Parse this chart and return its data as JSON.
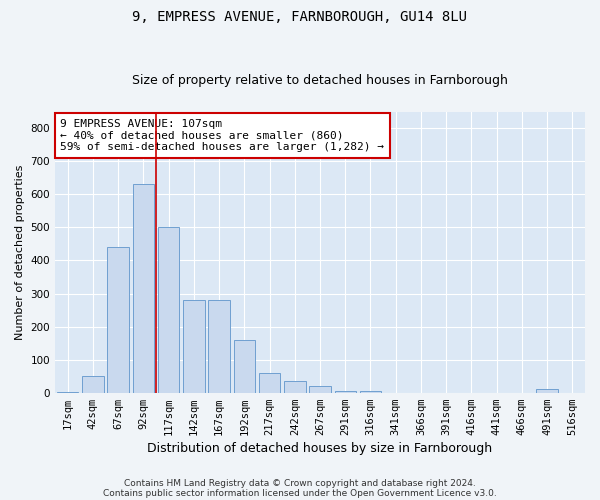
{
  "title1": "9, EMPRESS AVENUE, FARNBOROUGH, GU14 8LU",
  "title2": "Size of property relative to detached houses in Farnborough",
  "xlabel": "Distribution of detached houses by size in Farnborough",
  "ylabel": "Number of detached properties",
  "bin_labels": [
    "17sqm",
    "42sqm",
    "67sqm",
    "92sqm",
    "117sqm",
    "142sqm",
    "167sqm",
    "192sqm",
    "217sqm",
    "242sqm",
    "267sqm",
    "291sqm",
    "316sqm",
    "341sqm",
    "366sqm",
    "391sqm",
    "416sqm",
    "441sqm",
    "466sqm",
    "491sqm",
    "516sqm"
  ],
  "bar_values": [
    3,
    50,
    440,
    630,
    500,
    280,
    280,
    160,
    60,
    35,
    20,
    5,
    5,
    0,
    0,
    0,
    0,
    0,
    0,
    10,
    0
  ],
  "bar_color": "#c9d9ee",
  "bar_edge_color": "#6fa0d0",
  "vline_color": "#cc0000",
  "vline_pos": 3.5,
  "annotation_text": "9 EMPRESS AVENUE: 107sqm\n← 40% of detached houses are smaller (860)\n59% of semi-detached houses are larger (1,282) →",
  "annotation_box_color": "#ffffff",
  "annotation_box_edge": "#cc0000",
  "annotation_fontsize": 8,
  "footer1": "Contains HM Land Registry data © Crown copyright and database right 2024.",
  "footer2": "Contains public sector information licensed under the Open Government Licence v3.0.",
  "ylim": [
    0,
    850
  ],
  "yticks": [
    0,
    100,
    200,
    300,
    400,
    500,
    600,
    700,
    800
  ],
  "background_color": "#dce8f5",
  "grid_color": "#ffffff",
  "plot_bg": "#dce8f5",
  "fig_bg": "#f0f4f8",
  "title_fontsize": 10,
  "subtitle_fontsize": 9,
  "xlabel_fontsize": 9,
  "ylabel_fontsize": 8,
  "tick_fontsize": 7.5,
  "footer_fontsize": 6.5
}
